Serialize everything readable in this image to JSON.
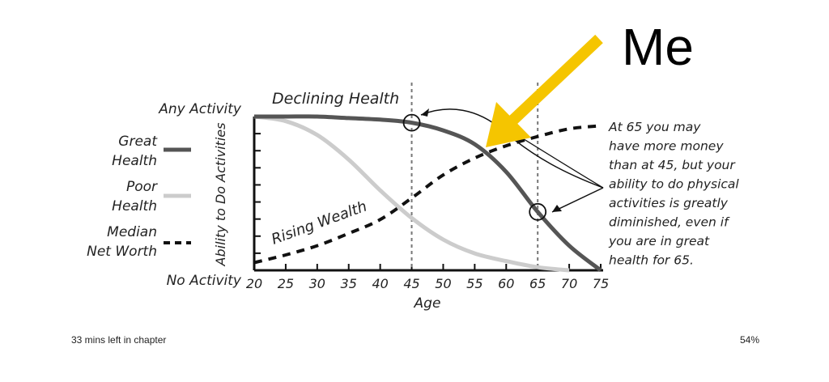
{
  "annotation": {
    "me_text": "Me",
    "arrow_color": "#F5C500"
  },
  "footer": {
    "time_left": "33 mins left in chapter",
    "progress": "54%"
  },
  "chart_data": {
    "type": "line",
    "title": "",
    "xlabel": "Age",
    "ylabel": "Ability to Do Activities",
    "xlim": [
      20,
      75
    ],
    "ylim": [
      0,
      1
    ],
    "x_ticks": [
      20,
      25,
      30,
      35,
      40,
      45,
      50,
      55,
      60,
      65,
      70,
      75
    ],
    "y_top_label": "Any Activity",
    "y_bottom_label": "No Activity",
    "reference_lines_x": [
      45,
      65
    ],
    "curve_labels": {
      "great_health": "Declining Health",
      "wealth": "Rising Wealth"
    },
    "legend": {
      "placement": "left",
      "entries": [
        {
          "label_line1": "Great",
          "label_line2": "Health",
          "style": "solid",
          "color": "#555555"
        },
        {
          "label_line1": "Poor",
          "label_line2": "Health",
          "style": "solid",
          "color": "#cccccc"
        },
        {
          "label_line1": "Median",
          "label_line2": "Net Worth",
          "style": "dashed",
          "color": "#111111"
        }
      ]
    },
    "note_lines": [
      "At 65 you may",
      "have more money",
      "than at 45, but your",
      "ability to do physical",
      "activities is greatly",
      "diminished, even if",
      "you are in great",
      "health for 65."
    ],
    "series": [
      {
        "id": "great",
        "color": "#555555",
        "dash": false,
        "width": 5,
        "x": [
          20,
          25,
          30,
          35,
          40,
          45,
          50,
          55,
          60,
          65,
          70,
          75
        ],
        "values": [
          1.0,
          1.0,
          1.0,
          0.99,
          0.98,
          0.96,
          0.91,
          0.82,
          0.64,
          0.38,
          0.16,
          0.0
        ]
      },
      {
        "id": "poor",
        "color": "#cccccc",
        "dash": false,
        "width": 5,
        "x": [
          20,
          25,
          30,
          35,
          40,
          45,
          50,
          55,
          60,
          65,
          70
        ],
        "values": [
          1.0,
          0.97,
          0.88,
          0.72,
          0.52,
          0.34,
          0.2,
          0.11,
          0.06,
          0.02,
          0.0
        ]
      },
      {
        "id": "wealth",
        "color": "#111111",
        "dash": true,
        "width": 4,
        "x": [
          20,
          25,
          30,
          35,
          40,
          45,
          50,
          55,
          60,
          65,
          70,
          75
        ],
        "values": [
          0.05,
          0.1,
          0.16,
          0.24,
          0.33,
          0.47,
          0.62,
          0.73,
          0.81,
          0.87,
          0.92,
          0.94
        ]
      }
    ]
  }
}
